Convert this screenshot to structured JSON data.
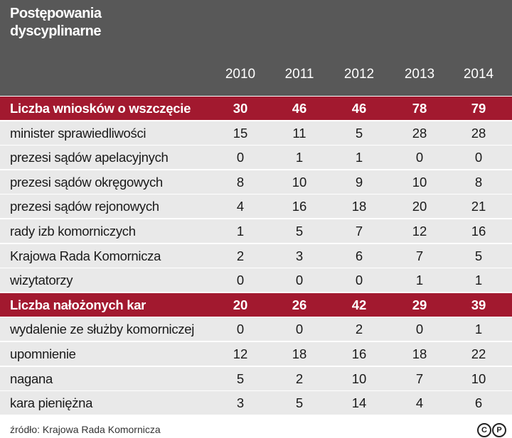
{
  "header": {
    "title": [
      "Postępowania",
      "dyscyplinarne"
    ]
  },
  "table": {
    "columns": [
      "2010",
      "2011",
      "2012",
      "2013",
      "2014"
    ],
    "rows": [
      {
        "label": "Liczba wniosków o wszczęcie",
        "values": [
          30,
          46,
          46,
          78,
          79
        ],
        "highlight": true
      },
      {
        "label": "minister sprawiedliwości",
        "values": [
          15,
          11,
          5,
          28,
          28
        ],
        "highlight": false
      },
      {
        "label": "prezesi sądów apelacyjnych",
        "values": [
          0,
          1,
          1,
          0,
          0
        ],
        "highlight": false
      },
      {
        "label": "prezesi sądów okręgowych",
        "values": [
          8,
          10,
          9,
          10,
          8
        ],
        "highlight": false
      },
      {
        "label": "prezesi sądów rejonowych",
        "values": [
          4,
          16,
          18,
          20,
          21
        ],
        "highlight": false
      },
      {
        "label": "rady izb komorniczych",
        "values": [
          1,
          5,
          7,
          12,
          16
        ],
        "highlight": false
      },
      {
        "label": "Krajowa Rada Komornicza",
        "values": [
          2,
          3,
          6,
          7,
          5
        ],
        "highlight": false
      },
      {
        "label": "wizytatorzy",
        "values": [
          0,
          0,
          0,
          1,
          1
        ],
        "highlight": false
      },
      {
        "label": "Liczba nałożonych kar",
        "values": [
          20,
          26,
          42,
          29,
          39
        ],
        "highlight": true
      },
      {
        "label": "wydalenie ze służby komorniczej",
        "values": [
          0,
          0,
          2,
          0,
          1
        ],
        "highlight": false
      },
      {
        "label": "upomnienie",
        "values": [
          12,
          18,
          16,
          18,
          22
        ],
        "highlight": false
      },
      {
        "label": "nagana",
        "values": [
          5,
          2,
          10,
          7,
          10
        ],
        "highlight": false
      },
      {
        "label": "kara pieniężna",
        "values": [
          3,
          5,
          14,
          4,
          6
        ],
        "highlight": false
      }
    ]
  },
  "footer": {
    "source": "źródło: Krajowa Rada Komornicza",
    "license_icons": [
      "C",
      "P"
    ]
  }
}
